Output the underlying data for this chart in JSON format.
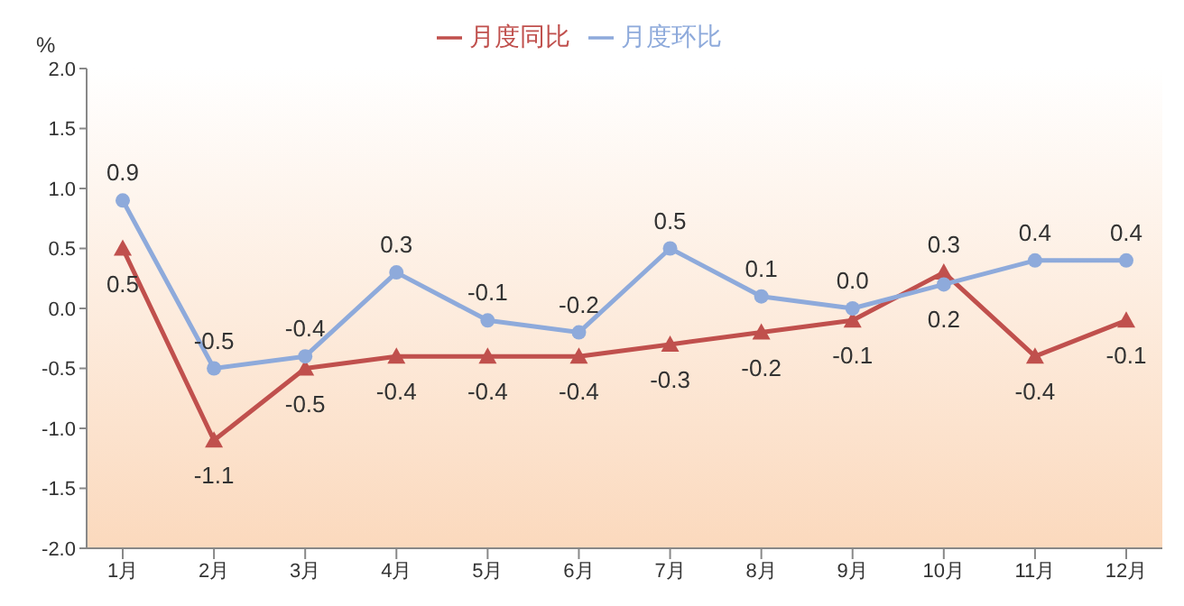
{
  "chart_data": {
    "type": "line",
    "ylabel": "%",
    "categories": [
      "1月",
      "2月",
      "3月",
      "4月",
      "5月",
      "6月",
      "7月",
      "8月",
      "9月",
      "10月",
      "11月",
      "12月"
    ],
    "series": [
      {
        "name": "月度同比",
        "color": "#c0504d",
        "marker": "triangle",
        "values": [
          0.5,
          -1.1,
          -0.5,
          -0.4,
          -0.4,
          -0.4,
          -0.3,
          -0.2,
          -0.1,
          0.3,
          -0.4,
          -0.1
        ],
        "value_labels": [
          "0.5",
          "-1.1",
          "-0.5",
          "-0.4",
          "-0.4",
          "-0.4",
          "-0.3",
          "-0.2",
          "-0.1",
          "0.3",
          "-0.4",
          "-0.1"
        ]
      },
      {
        "name": "月度环比",
        "color": "#8eaadb",
        "marker": "circle",
        "values": [
          0.9,
          -0.5,
          -0.4,
          0.3,
          -0.1,
          -0.2,
          0.5,
          0.1,
          0.0,
          0.2,
          0.4,
          0.4
        ],
        "value_labels": [
          "0.9",
          "-0.5",
          "-0.4",
          "0.3",
          "-0.1",
          "-0.2",
          "0.5",
          "0.1",
          "0.0",
          "0.2",
          "0.4",
          "0.4"
        ]
      }
    ],
    "ylim": [
      -2,
      2
    ],
    "yticks": [
      {
        "value": 2,
        "label": "2.0"
      },
      {
        "value": 1.5,
        "label": "1.5"
      },
      {
        "value": 1,
        "label": "1.0"
      },
      {
        "value": 0.5,
        "label": "0.5"
      },
      {
        "value": 0,
        "label": "0.0"
      },
      {
        "value": -0.5,
        "label": "-0.5"
      },
      {
        "value": -1,
        "label": "-1.0"
      },
      {
        "value": -1.5,
        "label": "-1.5"
      },
      {
        "value": -2,
        "label": "-2.0"
      }
    ],
    "grid": false,
    "legend": "top"
  }
}
